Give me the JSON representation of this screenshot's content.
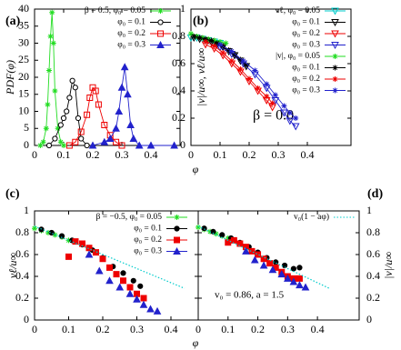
{
  "chart_data": [
    {
      "type": "line",
      "panel_label": "(a)",
      "ylabel": "PDF(φ)",
      "xlabel": "φ",
      "xlim": [
        0,
        0.5
      ],
      "ylim": [
        0,
        40
      ],
      "xticks": [
        0,
        0.1,
        0.2,
        0.3,
        0.4
      ],
      "yticks": [
        0,
        5,
        10,
        15,
        20,
        25,
        30,
        35,
        40
      ],
      "lines": true,
      "series": [
        {
          "name": "β = 0.5, φ₀ = 0.05",
          "color": "#22dd22",
          "marker": "star",
          "filled": true,
          "x": [
            0.02,
            0.03,
            0.04,
            0.045,
            0.05,
            0.055,
            0.06,
            0.065,
            0.07,
            0.08,
            0.09,
            0.1
          ],
          "values": [
            0,
            1,
            5,
            12,
            22,
            32,
            39,
            30,
            16,
            5,
            1,
            0
          ]
        },
        {
          "name": "φ₀ = 0.1",
          "color": "#000000",
          "marker": "circle",
          "filled": false,
          "x": [
            0.05,
            0.07,
            0.09,
            0.1,
            0.11,
            0.12,
            0.13,
            0.14,
            0.15,
            0.16,
            0.18
          ],
          "values": [
            0,
            2,
            6,
            8,
            10,
            14,
            19,
            17,
            8,
            2,
            0
          ]
        },
        {
          "name": "φ₀ = 0.2",
          "color": "#ee0000",
          "marker": "square",
          "filled": false,
          "x": [
            0.12,
            0.14,
            0.16,
            0.18,
            0.19,
            0.2,
            0.21,
            0.22,
            0.24,
            0.26,
            0.28,
            0.3
          ],
          "values": [
            0,
            1,
            4,
            9,
            14,
            17,
            16,
            12,
            6,
            3,
            1,
            0
          ]
        },
        {
          "name": "φ₀ = 0.3",
          "color": "#2222cc",
          "marker": "triangle",
          "filled": true,
          "x": [
            0.2,
            0.24,
            0.26,
            0.28,
            0.29,
            0.3,
            0.31,
            0.32,
            0.33,
            0.34,
            0.36,
            0.4,
            0.48
          ],
          "values": [
            0,
            1,
            2,
            5,
            10,
            17,
            23,
            15,
            6,
            2,
            0,
            0,
            0
          ]
        }
      ]
    },
    {
      "type": "line",
      "panel_label": "(b)",
      "ylabel": "|v|/u∞, vℓ/u∞",
      "annotation": "β = 0.0",
      "xlim": [
        0,
        0.55
      ],
      "ylim": [
        0,
        1
      ],
      "xticks": [
        0,
        0.1,
        0.2,
        0.3,
        0.4
      ],
      "yticks": [
        0,
        0.2,
        0.4,
        0.6,
        0.8,
        1
      ],
      "lines": true,
      "series": [
        {
          "name": "vℓ, φ₀ = 0.05",
          "color": "#00cccc",
          "marker": "triangle-down",
          "filled": false,
          "x": [
            0,
            0.02,
            0.04,
            0.06,
            0.08,
            0.1
          ],
          "values": [
            0.79,
            0.79,
            0.78,
            0.77,
            0.76,
            0.75
          ]
        },
        {
          "name": "φ₀ = 0.1",
          "color": "#000000",
          "marker": "triangle-down",
          "filled": false,
          "x": [
            0.01,
            0.03,
            0.05,
            0.07,
            0.09,
            0.11,
            0.13,
            0.15,
            0.17,
            0.19
          ],
          "values": [
            0.79,
            0.78,
            0.77,
            0.76,
            0.74,
            0.72,
            0.69,
            0.66,
            0.62,
            0.58
          ]
        },
        {
          "name": "φ₀ = 0.2",
          "color": "#ee0000",
          "marker": "triangle-down",
          "filled": false,
          "x": [
            0.05,
            0.08,
            0.11,
            0.14,
            0.17,
            0.2,
            0.23,
            0.26,
            0.28
          ],
          "values": [
            0.74,
            0.71,
            0.66,
            0.6,
            0.54,
            0.47,
            0.4,
            0.33,
            0.28
          ]
        },
        {
          "name": "φ₀ = 0.3",
          "color": "#2222cc",
          "marker": "triangle-down",
          "filled": false,
          "x": [
            0.1,
            0.14,
            0.18,
            0.22,
            0.26,
            0.29,
            0.32,
            0.34,
            0.36
          ],
          "values": [
            0.72,
            0.67,
            0.6,
            0.52,
            0.42,
            0.33,
            0.24,
            0.18,
            0.14
          ]
        },
        {
          "name": "|v|, φ₀ = 0.05",
          "color": "#22dd22",
          "marker": "star",
          "filled": true,
          "x": [
            0,
            0.02,
            0.04,
            0.06,
            0.08,
            0.1,
            0.12
          ],
          "values": [
            0.82,
            0.8,
            0.79,
            0.78,
            0.77,
            0.76,
            0.75
          ]
        },
        {
          "name": "φ₀ = 0.1",
          "color": "#000000",
          "marker": "star",
          "filled": true,
          "x": [
            0.01,
            0.03,
            0.05,
            0.07,
            0.09,
            0.11,
            0.13,
            0.15,
            0.17,
            0.19
          ],
          "values": [
            0.8,
            0.79,
            0.78,
            0.77,
            0.75,
            0.73,
            0.7,
            0.67,
            0.63,
            0.59
          ]
        },
        {
          "name": "φ₀ = 0.2",
          "color": "#ee0000",
          "marker": "star",
          "filled": true,
          "x": [
            0.05,
            0.08,
            0.11,
            0.14,
            0.17,
            0.2,
            0.23,
            0.26,
            0.28
          ],
          "values": [
            0.76,
            0.73,
            0.68,
            0.62,
            0.56,
            0.49,
            0.42,
            0.36,
            0.31
          ]
        },
        {
          "name": "φ₀ = 0.3",
          "color": "#2222cc",
          "marker": "star",
          "filled": true,
          "x": [
            0.1,
            0.14,
            0.18,
            0.22,
            0.26,
            0.29,
            0.32,
            0.34,
            0.36
          ],
          "values": [
            0.74,
            0.69,
            0.62,
            0.55,
            0.45,
            0.37,
            0.29,
            0.24,
            0.2
          ]
        }
      ]
    },
    {
      "type": "line",
      "panel_label": "(c)",
      "ylabel": "vℓ/u∞",
      "xlabel": "φ",
      "xlim": [
        0,
        0.48
      ],
      "ylim": [
        0,
        1
      ],
      "xticks": [
        0,
        0.1,
        0.2,
        0.3,
        0.4
      ],
      "yticks": [
        0,
        0.2,
        0.4,
        0.6,
        0.8,
        1
      ],
      "lines": false,
      "series": [
        {
          "name": "β = −0.5, φ₀ = 0.05",
          "color": "#22dd22",
          "marker": "star",
          "filled": true,
          "x": [
            0,
            0.02,
            0.04,
            0.06,
            0.08,
            0.1
          ],
          "values": [
            0.84,
            0.82,
            0.8,
            0.78,
            0.76,
            0.73
          ]
        },
        {
          "name": "φ₀ = 0.1",
          "color": "#000000",
          "marker": "circle",
          "filled": true,
          "x": [
            0.02,
            0.05,
            0.08,
            0.11,
            0.14,
            0.17,
            0.2,
            0.23,
            0.26,
            0.29,
            0.31
          ],
          "values": [
            0.83,
            0.8,
            0.77,
            0.73,
            0.69,
            0.64,
            0.57,
            0.49,
            0.43,
            0.36,
            0.31
          ]
        },
        {
          "name": "φ₀ = 0.2",
          "color": "#ee0000",
          "marker": "square",
          "filled": true,
          "x": [
            0.1,
            0.12,
            0.14,
            0.16,
            0.18,
            0.2,
            0.22,
            0.24,
            0.26,
            0.28,
            0.3,
            0.32
          ],
          "values": [
            0.58,
            0.72,
            0.7,
            0.66,
            0.62,
            0.56,
            0.48,
            0.42,
            0.36,
            0.3,
            0.24,
            0.2
          ]
        },
        {
          "name": "φ₀ = 0.3",
          "color": "#2222cc",
          "marker": "triangle",
          "filled": true,
          "x": [
            0.16,
            0.19,
            0.22,
            0.25,
            0.28,
            0.3,
            0.32,
            0.34,
            0.36
          ],
          "values": [
            0.6,
            0.45,
            0.36,
            0.3,
            0.24,
            0.19,
            0.14,
            0.1,
            0.08
          ]
        },
        {
          "color": "#00cccc",
          "marker": "none",
          "style": "dotted",
          "x": [
            0,
            0.44
          ],
          "values": [
            0.86,
            0.29
          ]
        }
      ]
    },
    {
      "type": "line",
      "panel_label": "(d)",
      "ylabel": "|v|/u∞",
      "annotation": "v₀ = 0.86, a = 1.5",
      "xlim": [
        0,
        0.54
      ],
      "ylim": [
        0,
        1
      ],
      "xticks": [
        0,
        0.1,
        0.2,
        0.3,
        0.4
      ],
      "yticks": [
        0,
        0.2,
        0.4,
        0.6,
        0.8,
        1
      ],
      "lines": false,
      "series": [
        {
          "color": "#22dd22",
          "marker": "star",
          "filled": true,
          "x": [
            0,
            0.02,
            0.04,
            0.06,
            0.08,
            0.1
          ],
          "values": [
            0.85,
            0.83,
            0.81,
            0.79,
            0.77,
            0.75
          ]
        },
        {
          "color": "#000000",
          "marker": "circle",
          "filled": true,
          "x": [
            0.02,
            0.05,
            0.08,
            0.11,
            0.14,
            0.17,
            0.2,
            0.23,
            0.26,
            0.29,
            0.32,
            0.34
          ],
          "values": [
            0.84,
            0.81,
            0.78,
            0.75,
            0.71,
            0.67,
            0.62,
            0.57,
            0.53,
            0.5,
            0.47,
            0.48
          ]
        },
        {
          "color": "#ee0000",
          "marker": "square",
          "filled": true,
          "x": [
            0.1,
            0.12,
            0.14,
            0.16,
            0.18,
            0.2,
            0.22,
            0.24,
            0.26,
            0.28,
            0.3,
            0.32,
            0.34
          ],
          "values": [
            0.71,
            0.73,
            0.7,
            0.67,
            0.63,
            0.6,
            0.56,
            0.52,
            0.48,
            0.44,
            0.4,
            0.38,
            0.38
          ]
        },
        {
          "color": "#2222cc",
          "marker": "triangle",
          "filled": true,
          "x": [
            0.16,
            0.19,
            0.22,
            0.25,
            0.28,
            0.3,
            0.32,
            0.34,
            0.36
          ],
          "values": [
            0.63,
            0.55,
            0.5,
            0.46,
            0.42,
            0.38,
            0.35,
            0.32,
            0.3
          ]
        },
        {
          "name": "v₀(1 − aφ)",
          "color": "#00cccc",
          "marker": "none",
          "style": "dotted",
          "x": [
            0,
            0.44
          ],
          "values": [
            0.86,
            0.29
          ]
        }
      ]
    }
  ]
}
